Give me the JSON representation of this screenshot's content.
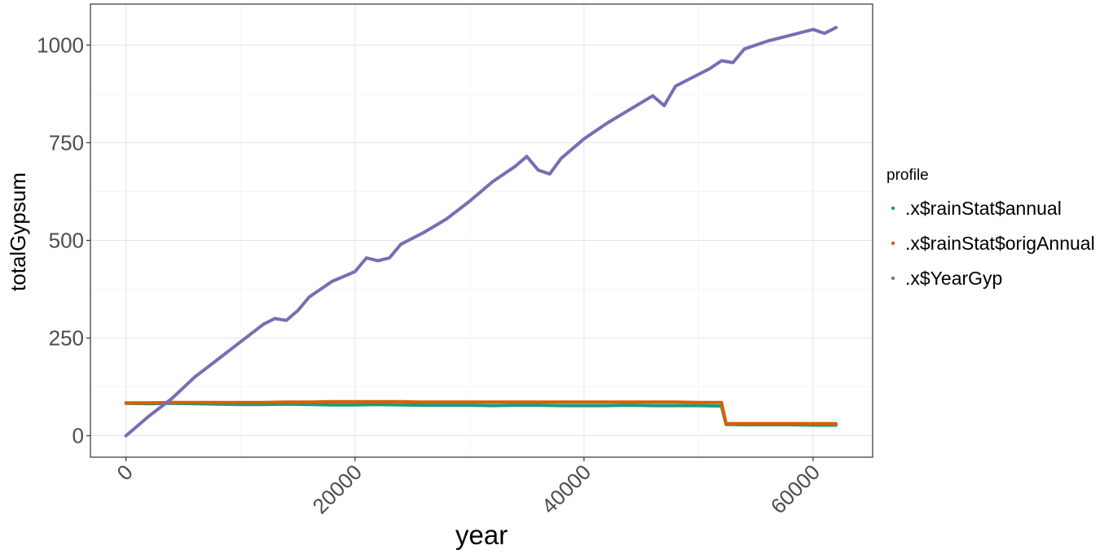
{
  "chart_data": {
    "type": "line",
    "xlabel": "year",
    "ylabel": "totalGypsum",
    "xlim": [
      -3100,
      65200
    ],
    "ylim": [
      -55,
      1105
    ],
    "x_ticks": [
      0,
      20000,
      40000,
      60000
    ],
    "x_tick_labels": [
      "0",
      "20000",
      "40000",
      "60000"
    ],
    "y_ticks": [
      0,
      250,
      500,
      750,
      1000
    ],
    "y_tick_labels": [
      "0",
      "250",
      "500",
      "750",
      "1000"
    ],
    "grid": true,
    "legend": {
      "title": "profile",
      "position": "right",
      "entries": [
        ".x$rainStat$annual",
        ".x$rainStat$origAnnual",
        ".x$YearGyp"
      ]
    },
    "series": [
      {
        "name": ".x$rainStat$annual",
        "color": "#1b9e77",
        "x": [
          0,
          2000,
          4000,
          6000,
          8000,
          10000,
          12000,
          14000,
          16000,
          18000,
          20000,
          22000,
          24000,
          26000,
          28000,
          30000,
          32000,
          34000,
          36000,
          38000,
          40000,
          42000,
          44000,
          46000,
          48000,
          50000,
          52000,
          52400,
          54000,
          56000,
          58000,
          60000,
          62000
        ],
        "y": [
          83,
          82,
          83,
          82,
          81,
          80,
          80,
          81,
          80,
          79,
          79,
          80,
          79,
          78,
          78,
          78,
          77,
          78,
          78,
          77,
          77,
          77,
          78,
          77,
          77,
          77,
          76,
          29,
          28,
          28,
          28,
          27,
          27
        ]
      },
      {
        "name": ".x$rainStat$origAnnual",
        "color": "#d95f02",
        "x": [
          0,
          2000,
          4000,
          6000,
          8000,
          10000,
          12000,
          14000,
          16000,
          18000,
          20000,
          22000,
          24000,
          26000,
          28000,
          30000,
          32000,
          34000,
          36000,
          38000,
          40000,
          42000,
          44000,
          46000,
          48000,
          50000,
          52000,
          52400,
          54000,
          56000,
          58000,
          60000,
          62000
        ],
        "y": [
          84,
          84,
          85,
          85,
          85,
          85,
          85,
          86,
          86,
          87,
          87,
          87,
          87,
          86,
          86,
          86,
          86,
          86,
          86,
          86,
          86,
          86,
          86,
          86,
          86,
          85,
          85,
          31,
          31,
          31,
          31,
          31,
          31
        ]
      },
      {
        "name": ".x$YearGyp",
        "color": "#7570b3",
        "x": [
          0,
          2000,
          4000,
          6000,
          8000,
          10000,
          12000,
          13000,
          14000,
          15000,
          16000,
          18000,
          20000,
          21000,
          22000,
          23000,
          24000,
          26000,
          28000,
          30000,
          32000,
          34000,
          35000,
          36000,
          37000,
          38000,
          40000,
          42000,
          44000,
          46000,
          47000,
          48000,
          50000,
          51000,
          52000,
          53000,
          54000,
          56000,
          58000,
          60000,
          61000,
          62000
        ],
        "y": [
          0,
          50,
          95,
          150,
          195,
          240,
          285,
          300,
          295,
          320,
          355,
          395,
          420,
          455,
          448,
          455,
          490,
          520,
          555,
          600,
          650,
          690,
          715,
          680,
          670,
          710,
          760,
          800,
          835,
          870,
          845,
          895,
          925,
          940,
          960,
          955,
          990,
          1010,
          1025,
          1040,
          1030,
          1045
        ]
      }
    ]
  }
}
